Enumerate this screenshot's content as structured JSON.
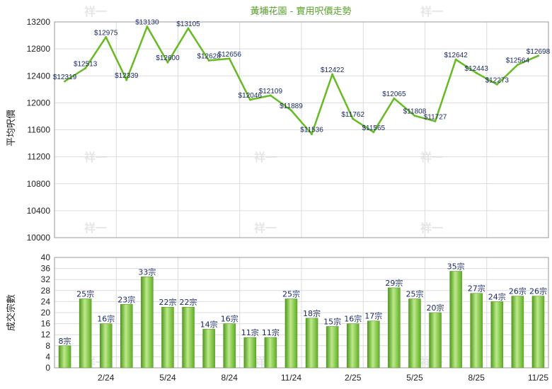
{
  "watermark": "祥一",
  "chart_data": [
    {
      "type": "line",
      "title": "黃埔花園 - 實用呎價走勢",
      "ylabel": "平均呎價",
      "ylim": [
        10000,
        13200
      ],
      "yticks": [
        10000,
        10400,
        10800,
        11200,
        11600,
        12000,
        12400,
        12800,
        13200
      ],
      "grid": true,
      "line_color": "#66bb22",
      "label_prefix": "$",
      "values": [
        12319,
        12513,
        12975,
        12339,
        13130,
        12600,
        13105,
        12628,
        12656,
        12046,
        12109,
        11889,
        11536,
        12422,
        11762,
        11565,
        12065,
        11808,
        11727,
        12642,
        12443,
        12273,
        12564,
        12698
      ]
    },
    {
      "type": "bar",
      "ylabel": "成交宗數",
      "ylim": [
        0,
        40
      ],
      "yticks": [
        0,
        4,
        8,
        12,
        16,
        20,
        24,
        28,
        32,
        36,
        40
      ],
      "grid": true,
      "bar_color": "#7cc142",
      "label_suffix": "宗",
      "values": [
        8,
        25,
        16,
        23,
        33,
        22,
        22,
        14,
        16,
        11,
        11,
        25,
        18,
        15,
        16,
        17,
        29,
        25,
        20,
        35,
        27,
        24,
        26,
        26
      ],
      "xtick_labels": [
        "2/24",
        "5/24",
        "8/24",
        "11/24",
        "2/25",
        "5/25",
        "8/25",
        "11/25"
      ],
      "xtick_indices": [
        2,
        5,
        8,
        11,
        14,
        17,
        20,
        23
      ]
    }
  ]
}
